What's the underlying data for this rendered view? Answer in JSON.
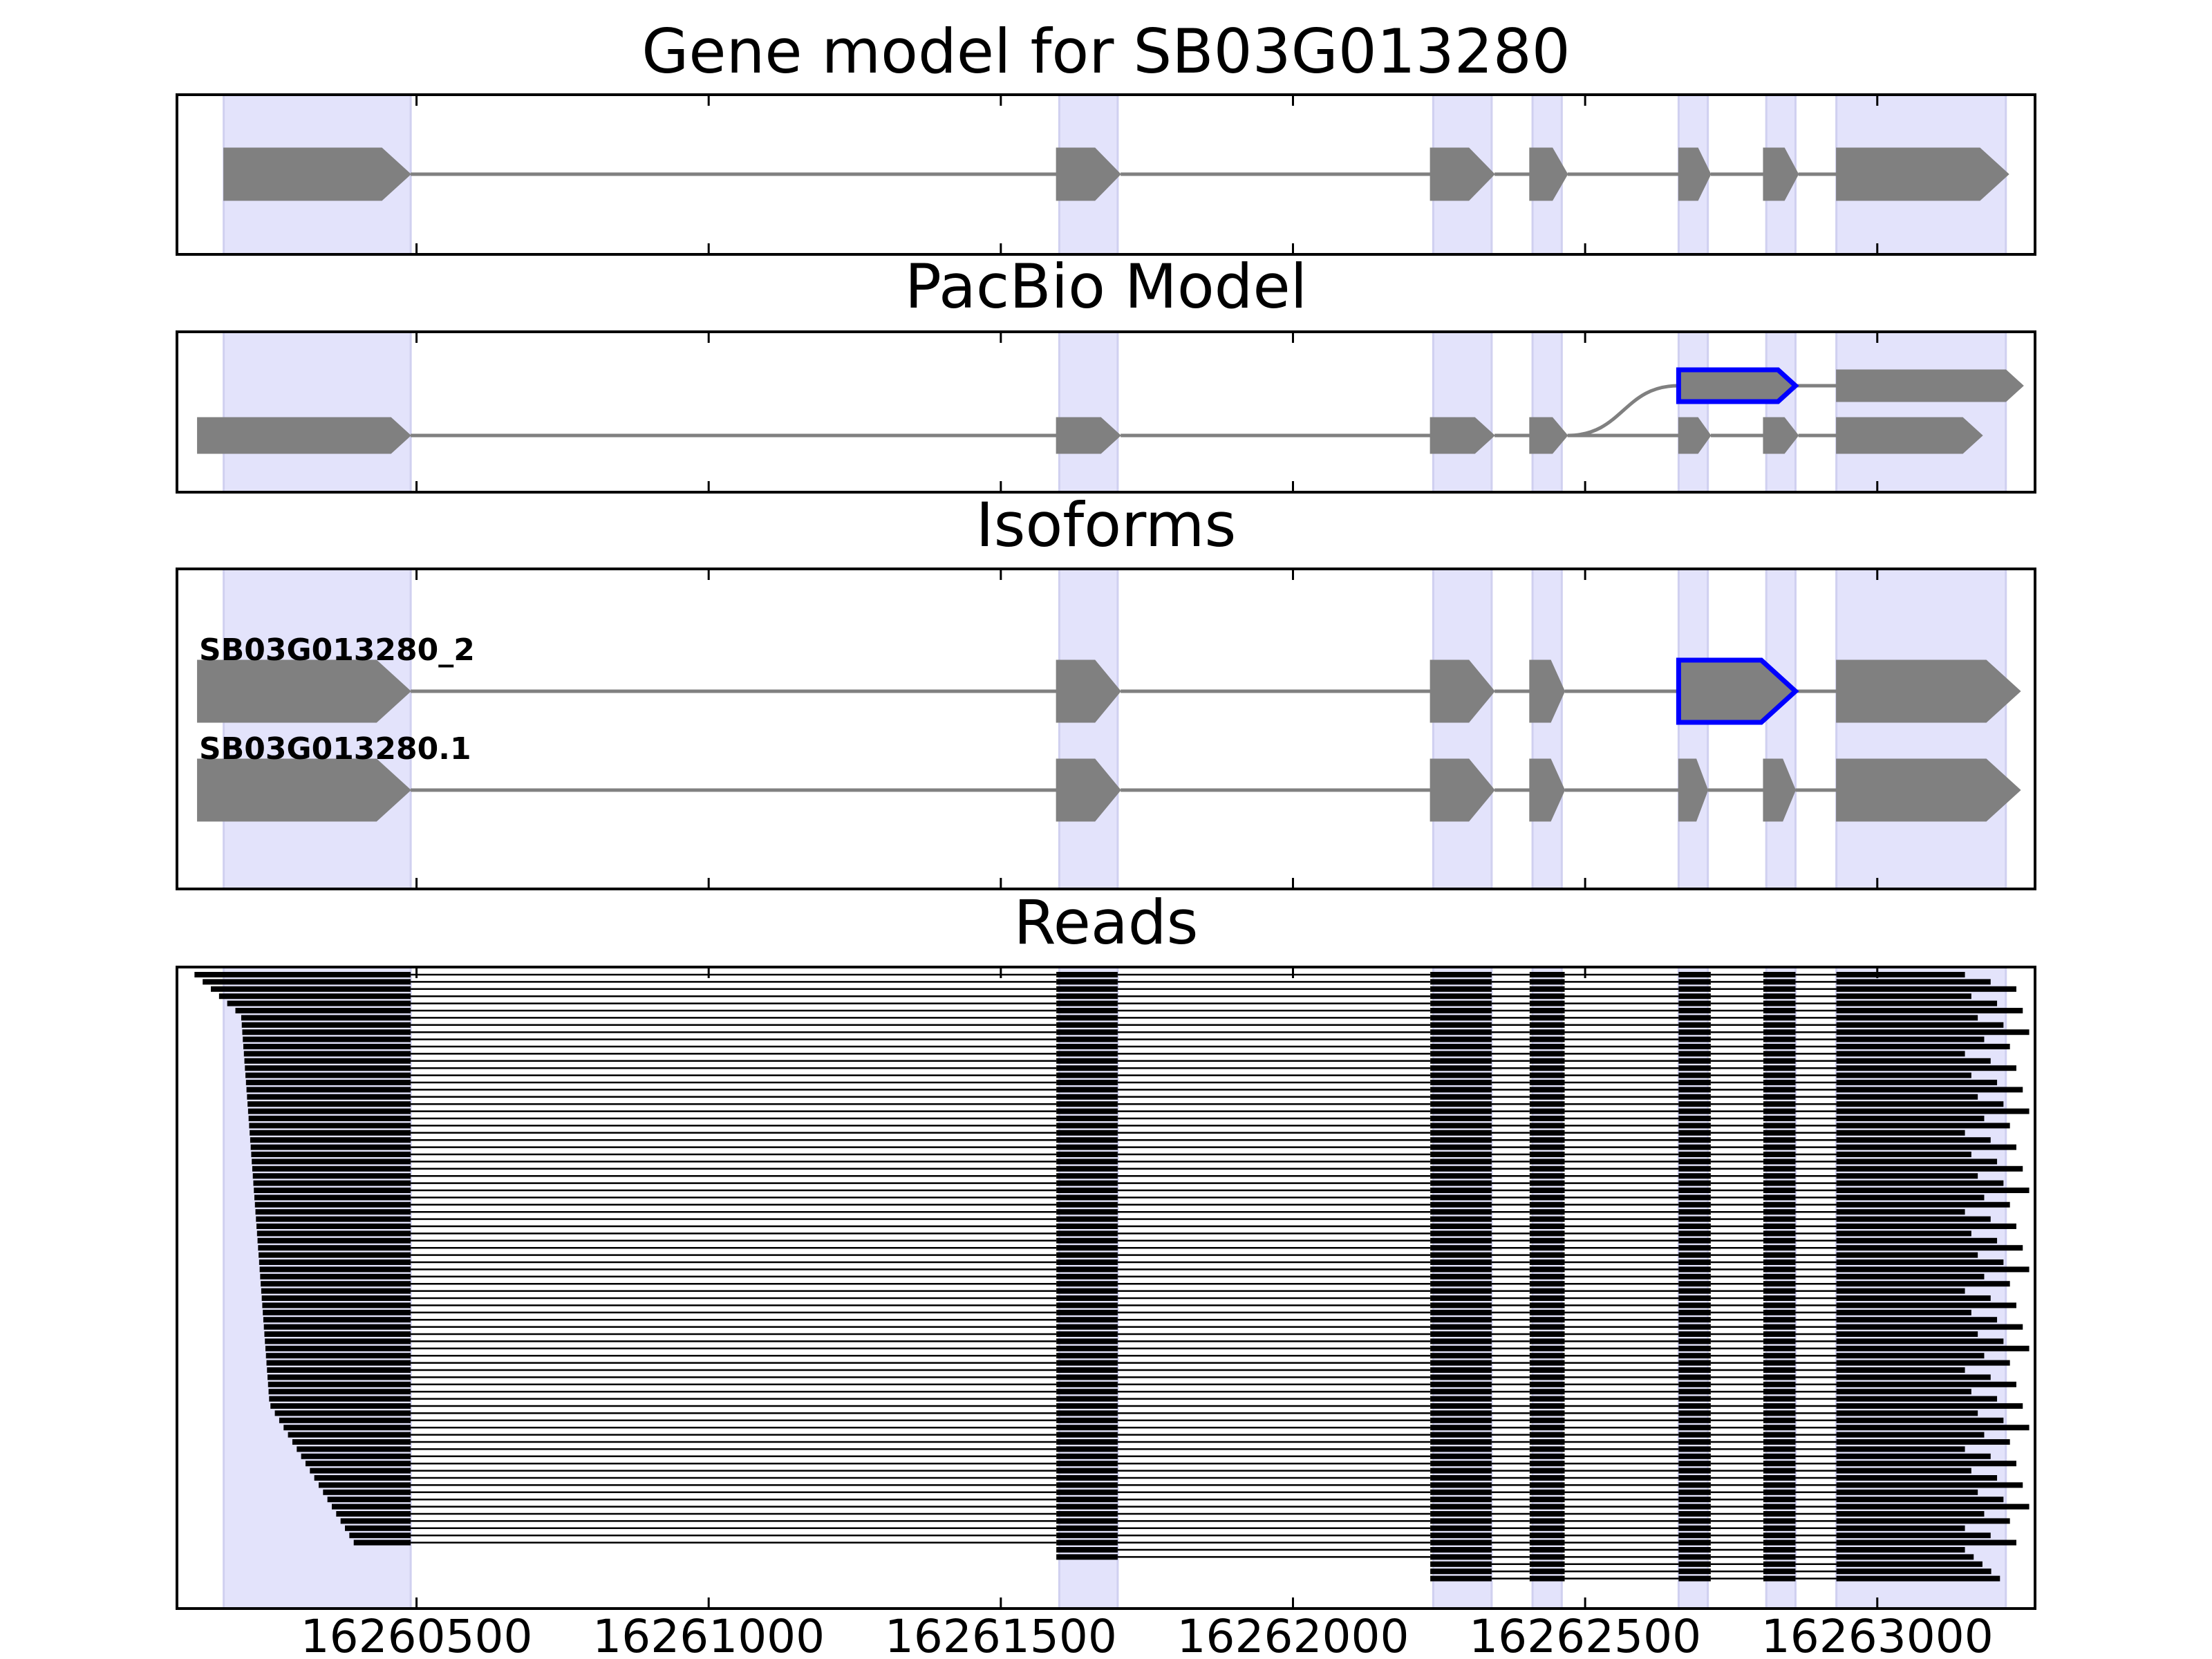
{
  "chart_data": {
    "type": "gene-structure",
    "xlim": [
      16260090,
      16263270
    ],
    "xticks": [
      16260500,
      16261000,
      16261500,
      16262000,
      16262500,
      16263000
    ],
    "xtick_labels": [
      "16260500",
      "16261000",
      "16261500",
      "16262000",
      "16262500",
      "16263000"
    ],
    "exon_highlight_regions": [
      [
        16260170,
        16260490
      ],
      [
        16261600,
        16261700
      ],
      [
        16262240,
        16262340
      ],
      [
        16262410,
        16262460
      ],
      [
        16262660,
        16262710
      ],
      [
        16262810,
        16262860
      ],
      [
        16262930,
        16263220
      ]
    ],
    "panels": [
      {
        "title": "Gene model for SB03G013280",
        "tracks": [
          {
            "label": "",
            "strand": "+",
            "color": "#808080",
            "exons": [
              [
                16260170,
                16260490
              ],
              [
                16261595,
                16261705
              ],
              [
                16262235,
                16262345
              ],
              [
                16262405,
                16262470
              ],
              [
                16262660,
                16262715
              ],
              [
                16262805,
                16262865
              ],
              [
                16262930,
                16263225
              ]
            ]
          }
        ]
      },
      {
        "title": "PacBio Model",
        "tracks": [
          {
            "label": "",
            "strand": "+",
            "color": "#808080",
            "joins_from_track": 1,
            "highlight_exon": 0,
            "highlight_color": "#0000ff",
            "exons": [
              [
                16262660,
                16262860
              ],
              [
                16262930,
                16263250
              ]
            ]
          },
          {
            "label": "",
            "strand": "+",
            "color": "#808080",
            "exons": [
              [
                16260125,
                16260490
              ],
              [
                16261595,
                16261705
              ],
              [
                16262235,
                16262345
              ],
              [
                16262405,
                16262470
              ],
              [
                16262660,
                16262715
              ],
              [
                16262805,
                16262865
              ],
              [
                16262930,
                16263180
              ]
            ]
          }
        ]
      },
      {
        "title": "Isoforms",
        "tracks": [
          {
            "label": "SB03G013280_2",
            "strand": "+",
            "color": "#808080",
            "highlight_exon": 4,
            "highlight_color": "#0000ff",
            "exons": [
              [
                16260125,
                16260490
              ],
              [
                16261595,
                16261705
              ],
              [
                16262235,
                16262345
              ],
              [
                16262405,
                16262465
              ],
              [
                16262660,
                16262860
              ],
              [
                16262930,
                16263245
              ]
            ]
          },
          {
            "label": "SB03G013280.1",
            "strand": "+",
            "color": "#808080",
            "exons": [
              [
                16260125,
                16260490
              ],
              [
                16261595,
                16261705
              ],
              [
                16262235,
                16262345
              ],
              [
                16262405,
                16262465
              ],
              [
                16262660,
                16262710
              ],
              [
                16262805,
                16262860
              ],
              [
                16262930,
                16263245
              ]
            ]
          }
        ]
      },
      {
        "title": "Reads",
        "read_count": 80,
        "read_color": "#000000",
        "read_exons_common": [
          [
            16261595,
            16261700
          ],
          [
            16262235,
            16262340
          ],
          [
            16262405,
            16262465
          ],
          [
            16262660,
            16262715
          ],
          [
            16262805,
            16262860
          ]
        ],
        "exon1_end": 16260490,
        "last_exon_start": 16262930,
        "read_starts_first_last": [
          16260120,
          16260400
        ],
        "read_ends_range": [
          16263150,
          16263260
        ]
      }
    ]
  }
}
